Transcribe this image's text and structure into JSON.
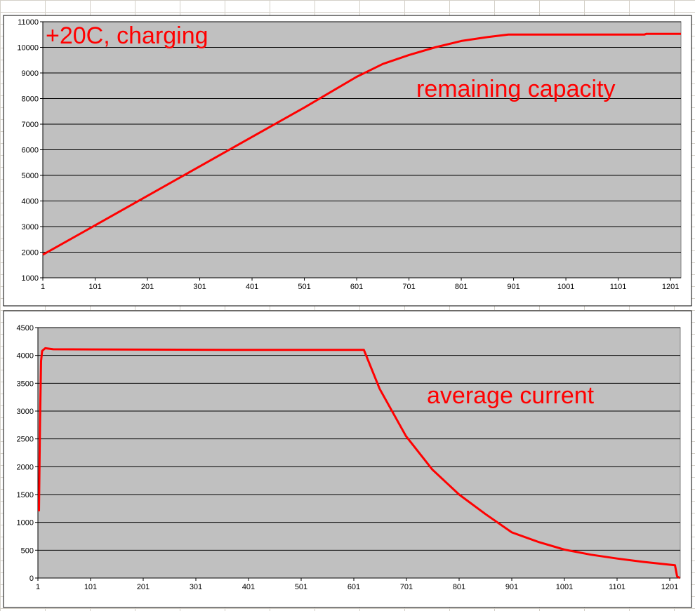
{
  "chart_data": [
    {
      "type": "line",
      "annotations": [
        "+20C, charging",
        "remaining capacity"
      ],
      "x": [
        1,
        101,
        201,
        301,
        401,
        501,
        601,
        651,
        701,
        751,
        801,
        851,
        891,
        1151,
        1155,
        1221
      ],
      "series": [
        {
          "color": "#ff0000",
          "values": [
            1900,
            3050,
            4200,
            5350,
            6500,
            7650,
            8850,
            9350,
            9700,
            10000,
            10250,
            10400,
            10500,
            10500,
            10530,
            10530
          ]
        }
      ],
      "xlim": [
        1,
        1221
      ],
      "xticks": [
        1,
        101,
        201,
        301,
        401,
        501,
        601,
        701,
        801,
        901,
        1001,
        1101,
        1201
      ],
      "ylim": [
        1000,
        11000
      ],
      "yticks": [
        1000,
        2000,
        3000,
        4000,
        5000,
        6000,
        7000,
        8000,
        9000,
        10000,
        11000
      ],
      "grid": true,
      "plot_color": "#c0c0c0"
    },
    {
      "type": "line",
      "annotations": [
        "average current"
      ],
      "x": [
        3,
        5,
        7,
        9,
        15,
        30,
        360,
        620,
        650,
        700,
        750,
        801,
        851,
        901,
        951,
        1001,
        1051,
        1101,
        1151,
        1201,
        1211,
        1215,
        1220
      ],
      "series": [
        {
          "color": "#ff0000",
          "values": [
            1200,
            2800,
            3900,
            4080,
            4130,
            4110,
            4100,
            4100,
            3400,
            2550,
            1950,
            1500,
            1150,
            820,
            650,
            510,
            420,
            350,
            290,
            240,
            230,
            30,
            0
          ]
        }
      ],
      "xlim": [
        1,
        1221
      ],
      "xticks": [
        1,
        101,
        201,
        301,
        401,
        501,
        601,
        701,
        801,
        901,
        1001,
        1101,
        1201
      ],
      "ylim": [
        0,
        4500
      ],
      "yticks": [
        0,
        500,
        1000,
        1500,
        2000,
        2500,
        3000,
        3500,
        4000,
        4500
      ],
      "grid": true,
      "plot_color": "#c0c0c0"
    }
  ]
}
